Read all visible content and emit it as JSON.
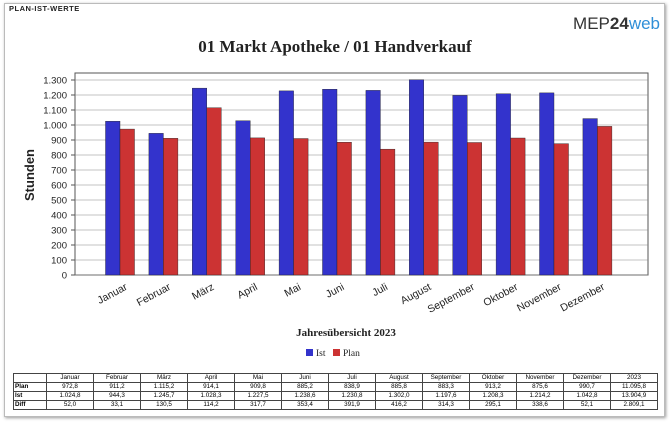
{
  "header": {
    "title": "PLAN-IST-WERTE",
    "logo": [
      "MEP",
      "24",
      "web"
    ]
  },
  "chart_data": {
    "type": "bar",
    "title": "01 Markt Apotheke / 01 Handverkauf",
    "ylabel": "Stunden",
    "xlabel": "Jahresübersicht 2023",
    "categories": [
      "Januar",
      "Februar",
      "März",
      "April",
      "Mai",
      "Juni",
      "Juli",
      "August",
      "September",
      "Oktober",
      "November",
      "Dezember"
    ],
    "series": [
      {
        "name": "Ist",
        "color": "#3333cc",
        "values": [
          1024.8,
          944.3,
          1245.7,
          1028.3,
          1227.5,
          1238.6,
          1230.8,
          1302.0,
          1197.6,
          1208.3,
          1214.2,
          1042.8
        ]
      },
      {
        "name": "Plan",
        "color": "#cc3333",
        "values": [
          972.8,
          911.2,
          1115.2,
          914.1,
          909.8,
          885.2,
          838.9,
          885.8,
          883.3,
          913.2,
          875.6,
          990.7
        ]
      }
    ],
    "ylim": [
      0,
      1300
    ],
    "yticks": [
      0,
      100,
      200,
      300,
      400,
      500,
      600,
      700,
      800,
      900,
      {
        "value": 1000,
        "label": "1.000"
      },
      {
        "value": 1100,
        "label": "1.100"
      },
      {
        "value": 1200,
        "label": "1.200"
      },
      {
        "value": 1300,
        "label": "1.300"
      }
    ],
    "grid": true,
    "legend": "bottom"
  },
  "table": {
    "columns": [
      "Januar",
      "Februar",
      "März",
      "April",
      "Mai",
      "Juni",
      "Juli",
      "August",
      "September",
      "Oktober",
      "November",
      "Dezember",
      "2023"
    ],
    "rows": [
      {
        "label": "Plan",
        "cells": [
          "972,8",
          "911,2",
          "1.115,2",
          "914,1",
          "909,8",
          "885,2",
          "838,9",
          "885,8",
          "883,3",
          "913,2",
          "875,6",
          "990,7",
          "11.095,8"
        ]
      },
      {
        "label": "Ist",
        "cells": [
          "1.024,8",
          "944,3",
          "1.245,7",
          "1.028,3",
          "1.227,5",
          "1.238,6",
          "1.230,8",
          "1.302,0",
          "1.197,6",
          "1.208,3",
          "1.214,2",
          "1.042,8",
          "13.904,9"
        ]
      },
      {
        "label": "Diff",
        "cells": [
          "52,0",
          "33,1",
          "130,5",
          "114,2",
          "317,7",
          "353,4",
          "391,9",
          "416,2",
          "314,3",
          "295,1",
          "338,6",
          "52,1",
          "2.809,1"
        ]
      }
    ]
  }
}
